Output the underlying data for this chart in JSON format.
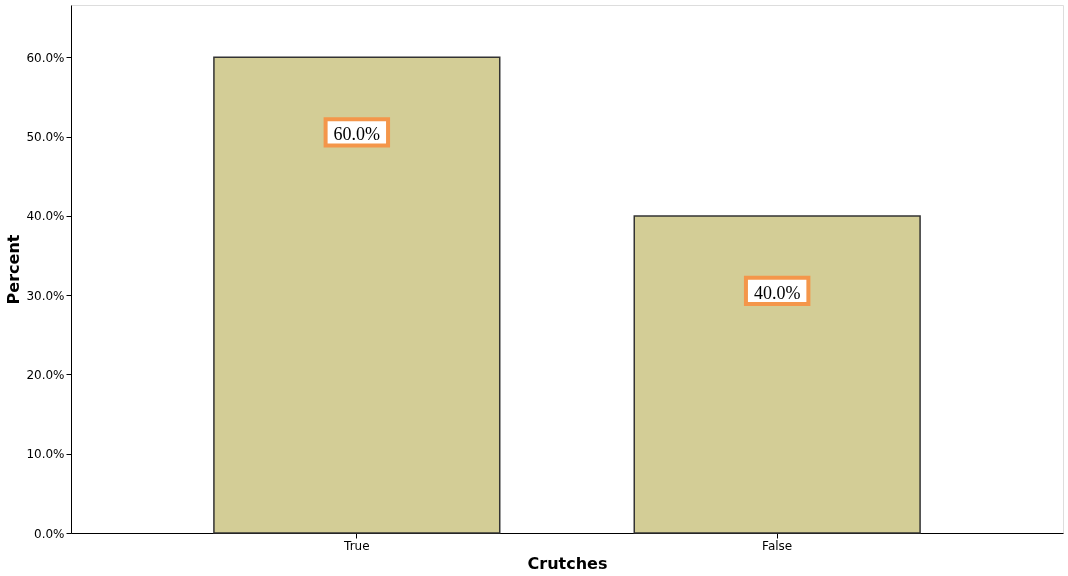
{
  "chart_data": {
    "type": "bar",
    "xlabel": "Crutches",
    "ylabel": "Percent",
    "categories": [
      "True",
      "False"
    ],
    "values": [
      60,
      40
    ],
    "color": "#d3cd96",
    "value_labels": [
      "60.0%",
      "40.0%"
    ],
    "ylim": [
      0,
      66.6
    ],
    "yticks": [
      {
        "value": 0,
        "label": "0.0%"
      },
      {
        "value": 10,
        "label": "10.0%"
      },
      {
        "value": 20,
        "label": "20.0%"
      },
      {
        "value": 30,
        "label": "30.0%"
      },
      {
        "value": 40,
        "label": "40.0%"
      },
      {
        "value": 50,
        "label": "50.0%"
      },
      {
        "value": 60,
        "label": "60.0%"
      }
    ],
    "grid": false
  }
}
